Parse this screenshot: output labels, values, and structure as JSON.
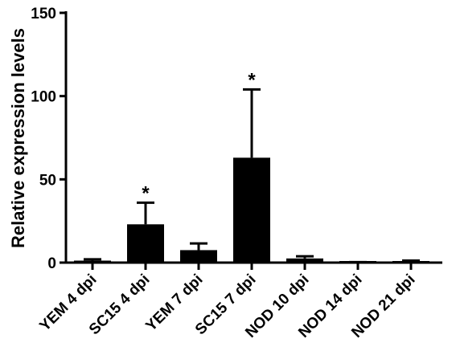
{
  "chart_data": {
    "type": "bar",
    "title": "",
    "xlabel": "",
    "ylabel": "Relative expression levels",
    "ylim": [
      0,
      150
    ],
    "yticks": [
      0,
      50,
      100,
      150
    ],
    "grid": false,
    "legend": "none",
    "bar_color": "#000000",
    "categories": [
      "YEM 4 dpi",
      "SC15 4 dpi",
      "YEM 7 dpi",
      "SC15 7 dpi",
      "NOD 10 dpi",
      "NOD 14 dpi",
      "NOD 21 dpi"
    ],
    "values": [
      1.2,
      23,
      7.5,
      63,
      2.5,
      0.2,
      0.8
    ],
    "errors": [
      0.8,
      13,
      4,
      41,
      1.3,
      0.1,
      0.4
    ],
    "significance": [
      "",
      "*",
      "",
      "*",
      "",
      "",
      ""
    ]
  }
}
